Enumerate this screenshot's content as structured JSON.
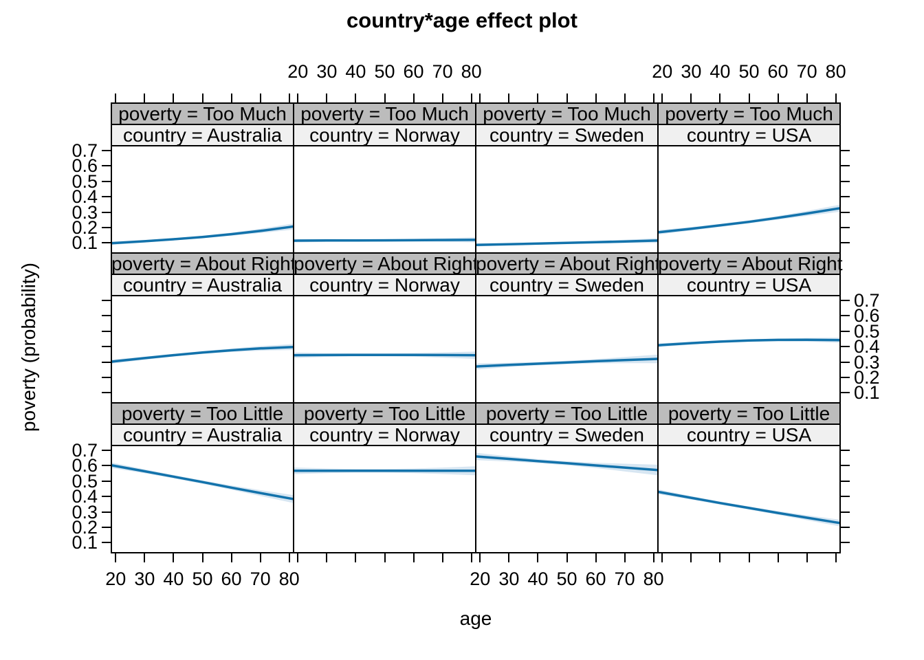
{
  "chart_data": {
    "type": "line",
    "title": "country*age effect plot",
    "xlabel": "age",
    "ylabel": "poverty (probability)",
    "layout": "trellis: 3 rows (poverty response level) x 4 columns (country), line + confidence band per panel",
    "x": [
      20,
      30,
      40,
      50,
      60,
      70,
      80
    ],
    "xlim": [
      18.5,
      81.5
    ],
    "ylim": [
      0.035,
      0.73
    ],
    "xtick_labels": [
      "20",
      "30",
      "40",
      "50",
      "60",
      "70",
      "80"
    ],
    "yticks": [
      0.1,
      0.2,
      0.3,
      0.4,
      0.5,
      0.6,
      0.7
    ],
    "ytick_labels": [
      "0.1",
      "0.2",
      "0.3",
      "0.4",
      "0.5",
      "0.6",
      "0.7"
    ],
    "colors": {
      "line": "#1272ab",
      "band": "#d7e6f2",
      "strip_poverty_bg": "#bcbcbc",
      "strip_country_bg": "#f0f0f0",
      "border": "#000000"
    },
    "legend_position": "none",
    "grid": false,
    "rows": [
      {
        "poverty": "Too Much",
        "poverty_label": "poverty = Too Much",
        "panels": [
          {
            "country": "Australia",
            "country_label": "country = Australia",
            "fit": [
              0.1,
              0.111,
              0.124,
              0.139,
              0.157,
              0.178,
              0.203
            ],
            "band": [
              0.01,
              0.008,
              0.007,
              0.008,
              0.01,
              0.014,
              0.019
            ]
          },
          {
            "country": "Norway",
            "country_label": "country = Norway",
            "fit": [
              0.115,
              0.116,
              0.116,
              0.117,
              0.118,
              0.119,
              0.12
            ],
            "band": [
              0.011,
              0.009,
              0.008,
              0.008,
              0.009,
              0.012,
              0.016
            ]
          },
          {
            "country": "Sweden",
            "country_label": "country = Sweden",
            "fit": [
              0.088,
              0.092,
              0.096,
              0.101,
              0.105,
              0.11,
              0.115
            ],
            "band": [
              0.01,
              0.008,
              0.007,
              0.007,
              0.008,
              0.011,
              0.015
            ]
          },
          {
            "country": "USA",
            "country_label": "country = USA",
            "fit": [
              0.172,
              0.192,
              0.214,
              0.237,
              0.263,
              0.291,
              0.321
            ],
            "band": [
              0.014,
              0.011,
              0.01,
              0.01,
              0.012,
              0.016,
              0.022
            ]
          }
        ]
      },
      {
        "poverty": "About Right",
        "poverty_label": "poverty = About Right",
        "panels": [
          {
            "country": "Australia",
            "country_label": "country = Australia",
            "fit": [
              0.305,
              0.325,
              0.344,
              0.361,
              0.376,
              0.388,
              0.396
            ],
            "band": [
              0.013,
              0.01,
              0.009,
              0.009,
              0.011,
              0.015,
              0.019
            ]
          },
          {
            "country": "Norway",
            "country_label": "country = Norway",
            "fit": [
              0.344,
              0.345,
              0.346,
              0.346,
              0.346,
              0.345,
              0.344
            ],
            "band": [
              0.017,
              0.012,
              0.01,
              0.01,
              0.012,
              0.017,
              0.023
            ]
          },
          {
            "country": "Sweden",
            "country_label": "country = Sweden",
            "fit": [
              0.272,
              0.281,
              0.289,
              0.297,
              0.305,
              0.312,
              0.319
            ],
            "band": [
              0.019,
              0.014,
              0.011,
              0.011,
              0.014,
              0.02,
              0.027
            ]
          },
          {
            "country": "USA",
            "country_label": "country = USA",
            "fit": [
              0.41,
              0.422,
              0.432,
              0.439,
              0.443,
              0.444,
              0.442
            ],
            "band": [
              0.012,
              0.009,
              0.008,
              0.008,
              0.009,
              0.012,
              0.016
            ]
          }
        ]
      },
      {
        "poverty": "Too Little",
        "poverty_label": "poverty = Too Little",
        "panels": [
          {
            "country": "Australia",
            "country_label": "country = Australia",
            "fit": [
              0.597,
              0.563,
              0.528,
              0.493,
              0.457,
              0.422,
              0.388
            ],
            "band": [
              0.017,
              0.013,
              0.011,
              0.011,
              0.014,
              0.019,
              0.025
            ]
          },
          {
            "country": "Norway",
            "country_label": "country = Norway",
            "fit": [
              0.566,
              0.566,
              0.566,
              0.566,
              0.566,
              0.566,
              0.566
            ],
            "band": [
              0.021,
              0.015,
              0.012,
              0.012,
              0.015,
              0.021,
              0.028
            ]
          },
          {
            "country": "Sweden",
            "country_label": "country = Sweden",
            "fit": [
              0.657,
              0.643,
              0.629,
              0.615,
              0.601,
              0.587,
              0.573
            ],
            "band": [
              0.023,
              0.017,
              0.013,
              0.013,
              0.017,
              0.025,
              0.033
            ]
          },
          {
            "country": "USA",
            "country_label": "country = USA",
            "fit": [
              0.425,
              0.391,
              0.357,
              0.325,
              0.293,
              0.262,
              0.232
            ],
            "band": [
              0.015,
              0.011,
              0.01,
              0.01,
              0.012,
              0.016,
              0.021
            ]
          }
        ]
      }
    ],
    "axis_label_sides": {
      "x_labels_top_columns": [
        "Norway",
        "USA"
      ],
      "x_labels_bottom_columns": [
        "Australia",
        "Sweden"
      ],
      "y_labels_left_rows": [
        "Too Much",
        "Too Little"
      ],
      "y_labels_right_rows": [
        "About Right"
      ]
    }
  }
}
